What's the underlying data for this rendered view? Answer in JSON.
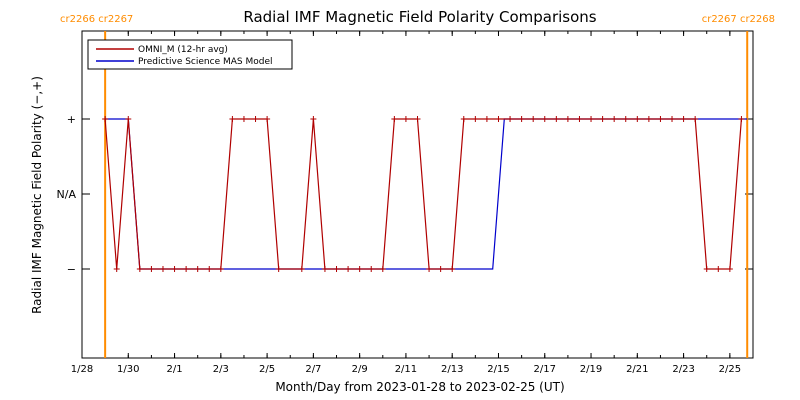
{
  "chart_data": {
    "type": "line",
    "title": "Radial IMF Magnetic Field Polarity Comparisons",
    "xlabel": "Month/Day from 2023-01-28 to 2023-02-25 (UT)",
    "ylabel": "Radial IMF Magnetic Field Polarity (−,+)",
    "xlim": [
      "2023-01-28 00:00",
      "2023-02-26 00:00"
    ],
    "x_tick_dates": [
      "2023-01-28",
      "2023-01-30",
      "2023-02-01",
      "2023-02-03",
      "2023-02-05",
      "2023-02-07",
      "2023-02-09",
      "2023-02-11",
      "2023-02-13",
      "2023-02-15",
      "2023-02-17",
      "2023-02-19",
      "2023-02-21",
      "2023-02-23",
      "2023-02-25"
    ],
    "x_tick_labels": [
      "1/28",
      "1/30",
      "2/1",
      "2/3",
      "2/5",
      "2/7",
      "2/9",
      "2/11",
      "2/13",
      "2/15",
      "2/17",
      "2/19",
      "2/21",
      "2/23",
      "2/25"
    ],
    "y_categories": [
      "−",
      "N/A",
      "+"
    ],
    "y_tick_labels": [
      "−",
      "N/A",
      "+"
    ],
    "grid": false,
    "legend_position": "top-left",
    "carrington_markers": [
      {
        "date": "2023-01-29 00:00",
        "label": "cr2266 cr2267",
        "position": "left"
      },
      {
        "date": "2023-02-25 18:00",
        "label": "cr2267 cr2268",
        "position": "right"
      }
    ],
    "series": [
      {
        "name": "OMNI_M (12-hr avg)",
        "color": "#b00000",
        "marker": "+",
        "points": [
          [
            "2023-01-29 00:00",
            "+"
          ],
          [
            "2023-01-29 12:00",
            "−"
          ],
          [
            "2023-01-30 00:00",
            "+"
          ],
          [
            "2023-01-30 12:00",
            "−"
          ],
          [
            "2023-01-31 00:00",
            "−"
          ],
          [
            "2023-01-31 12:00",
            "−"
          ],
          [
            "2023-02-01 00:00",
            "−"
          ],
          [
            "2023-02-01 12:00",
            "−"
          ],
          [
            "2023-02-02 00:00",
            "−"
          ],
          [
            "2023-02-02 12:00",
            "−"
          ],
          [
            "2023-02-03 00:00",
            "−"
          ],
          [
            "2023-02-03 12:00",
            "+"
          ],
          [
            "2023-02-04 00:00",
            "+"
          ],
          [
            "2023-02-04 12:00",
            "+"
          ],
          [
            "2023-02-05 00:00",
            "+"
          ],
          [
            "2023-02-05 12:00",
            "−"
          ],
          [
            "2023-02-06 12:00",
            "−"
          ],
          [
            "2023-02-07 00:00",
            "+"
          ],
          [
            "2023-02-07 12:00",
            "−"
          ],
          [
            "2023-02-08 00:00",
            "−"
          ],
          [
            "2023-02-08 12:00",
            "−"
          ],
          [
            "2023-02-09 00:00",
            "−"
          ],
          [
            "2023-02-09 12:00",
            "−"
          ],
          [
            "2023-02-10 00:00",
            "−"
          ],
          [
            "2023-02-10 12:00",
            "+"
          ],
          [
            "2023-02-11 00:00",
            "+"
          ],
          [
            "2023-02-11 12:00",
            "+"
          ],
          [
            "2023-02-12 00:00",
            "−"
          ],
          [
            "2023-02-12 12:00",
            "−"
          ],
          [
            "2023-02-13 00:00",
            "−"
          ],
          [
            "2023-02-13 12:00",
            "+"
          ],
          [
            "2023-02-14 00:00",
            "+"
          ],
          [
            "2023-02-14 12:00",
            "+"
          ],
          [
            "2023-02-15 00:00",
            "+"
          ],
          [
            "2023-02-15 12:00",
            "+"
          ],
          [
            "2023-02-16 00:00",
            "+"
          ],
          [
            "2023-02-16 12:00",
            "+"
          ],
          [
            "2023-02-17 00:00",
            "+"
          ],
          [
            "2023-02-17 12:00",
            "+"
          ],
          [
            "2023-02-18 00:00",
            "+"
          ],
          [
            "2023-02-18 12:00",
            "+"
          ],
          [
            "2023-02-19 00:00",
            "+"
          ],
          [
            "2023-02-19 12:00",
            "+"
          ],
          [
            "2023-02-20 00:00",
            "+"
          ],
          [
            "2023-02-20 12:00",
            "+"
          ],
          [
            "2023-02-21 00:00",
            "+"
          ],
          [
            "2023-02-21 12:00",
            "+"
          ],
          [
            "2023-02-22 00:00",
            "+"
          ],
          [
            "2023-02-22 12:00",
            "+"
          ],
          [
            "2023-02-23 00:00",
            "+"
          ],
          [
            "2023-02-23 12:00",
            "+"
          ],
          [
            "2023-02-24 00:00",
            "−"
          ],
          [
            "2023-02-24 12:00",
            "−"
          ],
          [
            "2023-02-25 00:00",
            "−"
          ],
          [
            "2023-02-25 12:00",
            "+"
          ]
        ]
      },
      {
        "name": "Predictive Science MAS Model",
        "color": "#0000cc",
        "points": [
          [
            "2023-01-29 00:00",
            "+"
          ],
          [
            "2023-01-30 00:00",
            "+"
          ],
          [
            "2023-01-30 12:00",
            "−"
          ],
          [
            "2023-02-14 18:00",
            "−"
          ],
          [
            "2023-02-15 06:00",
            "+"
          ],
          [
            "2023-02-25 18:00",
            "+"
          ]
        ]
      }
    ]
  }
}
